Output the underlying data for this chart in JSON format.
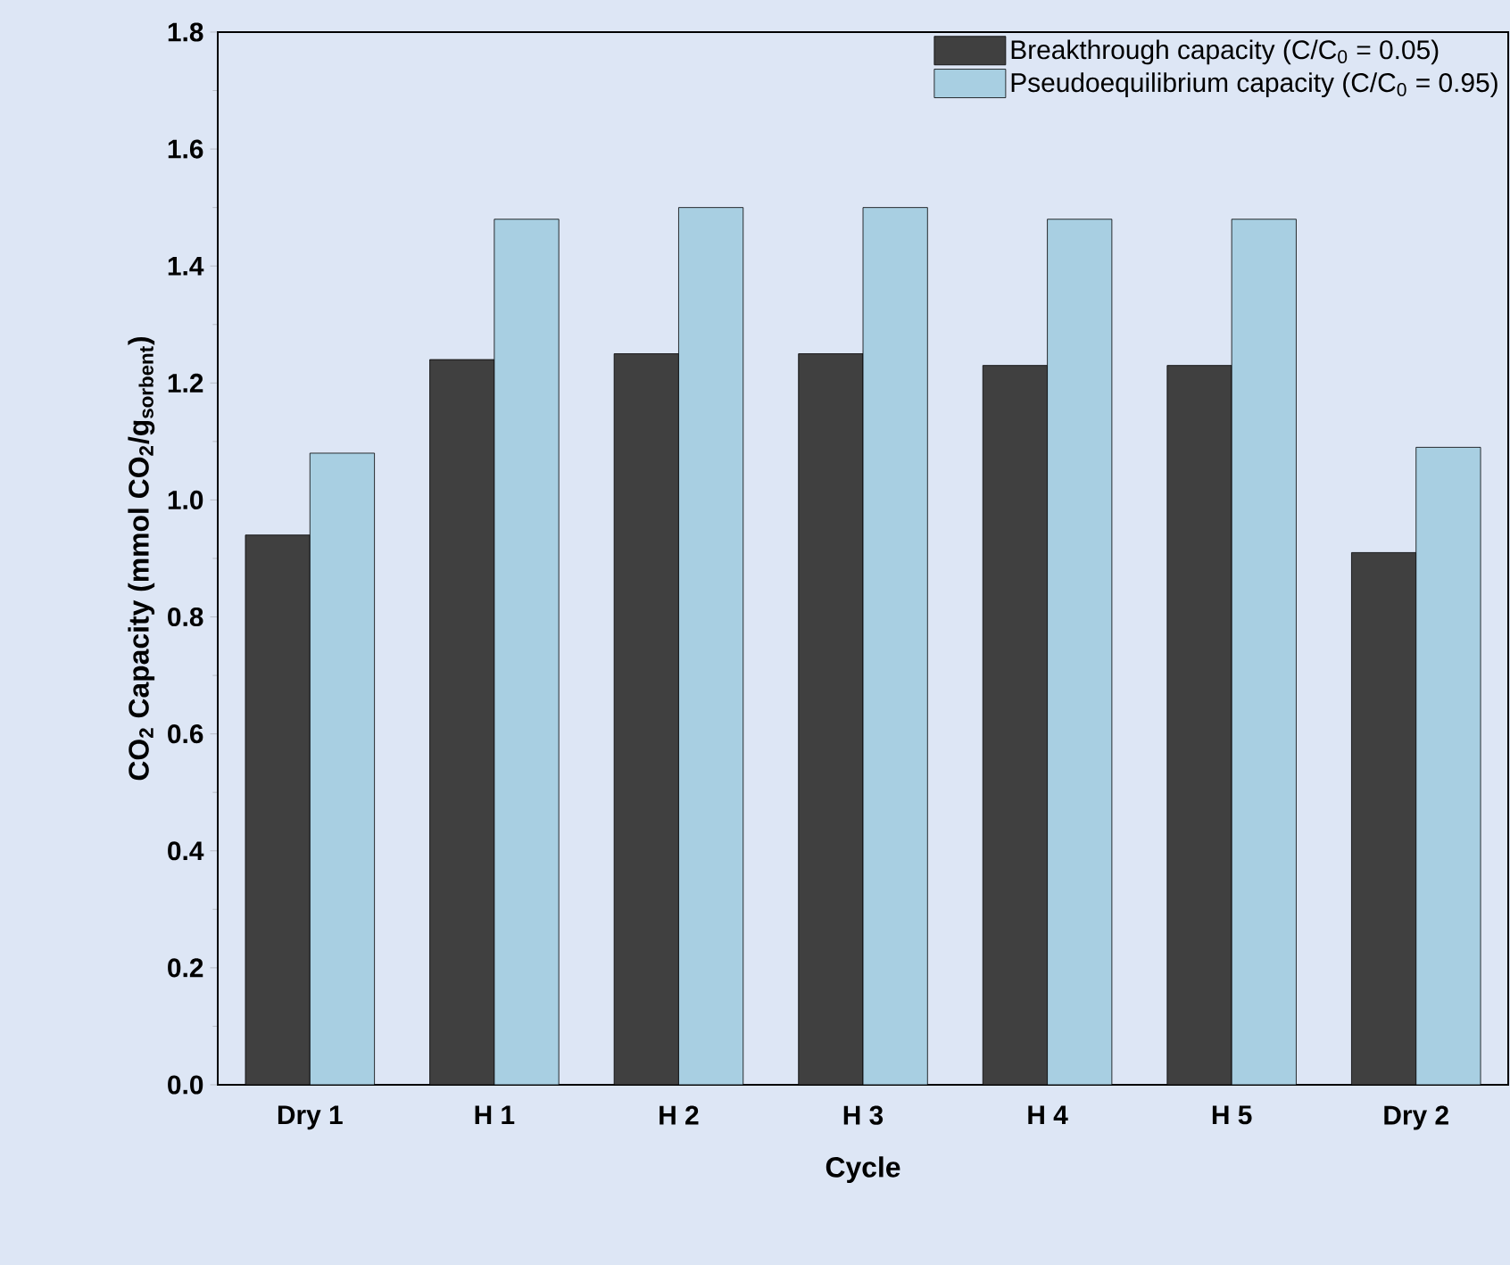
{
  "chart_data": {
    "type": "bar",
    "xlabel": "Cycle",
    "ylabel": "CO$_{2}$ Capacity (mmol CO$_{2}$/g$_{sorbent}$)",
    "categories": [
      "Dry 1",
      "H 1",
      "H 2",
      "H 3",
      "H 4",
      "H 5",
      "Dry 2"
    ],
    "series": [
      {
        "name": "Breakthrough capacity (C/C$_{0}$ = 0.05)",
        "color": "#404040",
        "values": [
          0.94,
          1.24,
          1.25,
          1.25,
          1.23,
          1.23,
          0.91
        ]
      },
      {
        "name": "Pseudoequilibrium capacity (C/C$_{0}$ = 0.95)",
        "color": "#a8cfe2",
        "values": [
          1.08,
          1.48,
          1.5,
          1.5,
          1.48,
          1.48,
          1.09
        ]
      }
    ],
    "ylim": [
      0,
      1.8
    ],
    "yticks": [
      {
        "value": 0,
        "label": "0.0"
      },
      0.2,
      0.4,
      0.6,
      0.8,
      {
        "value": 1.0,
        "label": "1.0"
      },
      1.2,
      1.4,
      1.6,
      1.8
    ],
    "legend": "top right",
    "grid": false
  }
}
